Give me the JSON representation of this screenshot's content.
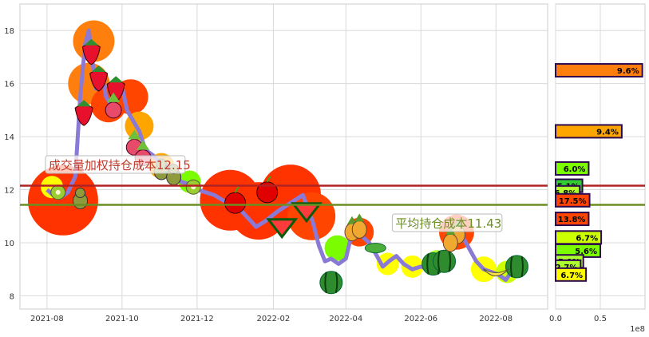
{
  "chart_data": [
    {
      "type": "line",
      "title": "",
      "xlabel": "",
      "ylabel": "",
      "x_ticks": [
        "2021-08",
        "2021-10",
        "2021-12",
        "2022-02",
        "2022-04",
        "2022-06",
        "2022-08"
      ],
      "y_ticks": [
        8,
        10,
        12,
        14,
        16,
        18
      ],
      "xlim": [
        "2021-07-10",
        "2022-09-12"
      ],
      "ylim": [
        7.5,
        19.0
      ],
      "grid": true,
      "series": [
        {
          "values": [
            {
              "x": "2021-08-01",
              "y": 12.0
            },
            {
              "x": "2021-08-06",
              "y": 11.8
            },
            {
              "x": "2021-08-12",
              "y": 11.7
            },
            {
              "x": "2021-08-18",
              "y": 11.9
            },
            {
              "x": "2021-08-24",
              "y": 12.5
            },
            {
              "x": "2021-08-28",
              "y": 15.5
            },
            {
              "x": "2021-09-01",
              "y": 17.5
            },
            {
              "x": "2021-09-04",
              "y": 18.0
            },
            {
              "x": "2021-09-07",
              "y": 16.8
            },
            {
              "x": "2021-09-10",
              "y": 15.8
            },
            {
              "x": "2021-09-14",
              "y": 16.5
            },
            {
              "x": "2021-09-18",
              "y": 15.5
            },
            {
              "x": "2021-09-22",
              "y": 15.2
            },
            {
              "x": "2021-09-27",
              "y": 15.8
            },
            {
              "x": "2021-10-01",
              "y": 15.9
            },
            {
              "x": "2021-10-05",
              "y": 15.0
            },
            {
              "x": "2021-10-10",
              "y": 14.6
            },
            {
              "x": "2021-10-15",
              "y": 14.2
            },
            {
              "x": "2021-10-20",
              "y": 13.5
            },
            {
              "x": "2021-10-26",
              "y": 13.3
            },
            {
              "x": "2021-11-01",
              "y": 13.0
            },
            {
              "x": "2021-11-07",
              "y": 12.9
            },
            {
              "x": "2021-11-12",
              "y": 12.6
            },
            {
              "x": "2021-11-18",
              "y": 12.3
            },
            {
              "x": "2021-11-25",
              "y": 12.2
            },
            {
              "x": "2021-12-01",
              "y": 12.0
            },
            {
              "x": "2021-12-08",
              "y": 11.9
            },
            {
              "x": "2021-12-15",
              "y": 11.8
            },
            {
              "x": "2021-12-22",
              "y": 11.6
            },
            {
              "x": "2022-01-02",
              "y": 11.4
            },
            {
              "x": "2022-01-10",
              "y": 11.0
            },
            {
              "x": "2022-01-18",
              "y": 10.6
            },
            {
              "x": "2022-01-25",
              "y": 10.8
            },
            {
              "x": "2022-02-05",
              "y": 11.2
            },
            {
              "x": "2022-02-15",
              "y": 11.5
            },
            {
              "x": "2022-02-25",
              "y": 11.8
            },
            {
              "x": "2022-03-01",
              "y": 11.3
            },
            {
              "x": "2022-03-05",
              "y": 10.8
            },
            {
              "x": "2022-03-10",
              "y": 9.9
            },
            {
              "x": "2022-03-15",
              "y": 9.3
            },
            {
              "x": "2022-03-20",
              "y": 9.4
            },
            {
              "x": "2022-03-26",
              "y": 9.2
            },
            {
              "x": "2022-04-01",
              "y": 9.4
            },
            {
              "x": "2022-04-06",
              "y": 10.4
            },
            {
              "x": "2022-04-10",
              "y": 10.7
            },
            {
              "x": "2022-04-15",
              "y": 10.2
            },
            {
              "x": "2022-04-20",
              "y": 10.0
            },
            {
              "x": "2022-04-25",
              "y": 9.6
            },
            {
              "x": "2022-05-01",
              "y": 9.1
            },
            {
              "x": "2022-05-06",
              "y": 9.3
            },
            {
              "x": "2022-05-12",
              "y": 9.5
            },
            {
              "x": "2022-05-18",
              "y": 9.2
            },
            {
              "x": "2022-05-25",
              "y": 9.0
            },
            {
              "x": "2022-06-01",
              "y": 9.1
            },
            {
              "x": "2022-06-08",
              "y": 9.0
            },
            {
              "x": "2022-06-15",
              "y": 9.2
            },
            {
              "x": "2022-06-22",
              "y": 9.6
            },
            {
              "x": "2022-06-28",
              "y": 10.5
            },
            {
              "x": "2022-07-04",
              "y": 10.3
            },
            {
              "x": "2022-07-10",
              "y": 9.8
            },
            {
              "x": "2022-07-16",
              "y": 9.3
            },
            {
              "x": "2022-07-22",
              "y": 9.0
            },
            {
              "x": "2022-07-28",
              "y": 8.9
            },
            {
              "x": "2022-08-03",
              "y": 8.8
            },
            {
              "x": "2022-08-09",
              "y": 8.6
            },
            {
              "x": "2022-08-15",
              "y": 9.0
            },
            {
              "x": "2022-08-20",
              "y": 9.1
            }
          ]
        }
      ],
      "reference_lines": [
        {
          "label": "成交量加权持仓成本12.15",
          "y": 12.15,
          "color": "#b22222"
        },
        {
          "label": "平均持仓成本11.43",
          "y": 11.43,
          "color": "#6b8e23"
        }
      ]
    },
    {
      "type": "bar",
      "orientation": "horizontal",
      "x_ticks": [
        "0.0",
        "0.5"
      ],
      "x_multiplier": "1e8",
      "xlim": [
        0,
        1.0
      ],
      "bars": [
        {
          "y": 16.5,
          "value": 0.97,
          "label": "9.6%",
          "color": "#ff7f0e"
        },
        {
          "y": 14.2,
          "value": 0.74,
          "label": "9.4%",
          "color": "#ffa500"
        },
        {
          "y": 12.8,
          "value": 0.37,
          "label": "6.0%",
          "color": "#7cfc00"
        },
        {
          "y": 12.15,
          "value": 0.3,
          "label": "5.1%",
          "color": "#32cd32"
        },
        {
          "y": 11.9,
          "value": 0.27,
          "label": "6.8%",
          "color": "#adff2f"
        },
        {
          "y": 11.6,
          "value": 0.38,
          "label": "17.5%",
          "color": "#ff4500"
        },
        {
          "y": 10.9,
          "value": 0.37,
          "label": "13.8%",
          "color": "#ff4500"
        },
        {
          "y": 10.2,
          "value": 0.51,
          "label": "6.7%",
          "color": "#ccff00"
        },
        {
          "y": 9.7,
          "value": 0.5,
          "label": "5.6%",
          "color": "#7cfc00"
        },
        {
          "y": 9.3,
          "value": 0.31,
          "label": "5.0%",
          "color": "#adff2f"
        },
        {
          "y": 9.1,
          "value": 0.28,
          "label": "2.7%",
          "color": "#adff2f"
        },
        {
          "y": 8.8,
          "value": 0.34,
          "label": "6.7%",
          "color": "#ffff00"
        }
      ]
    }
  ]
}
